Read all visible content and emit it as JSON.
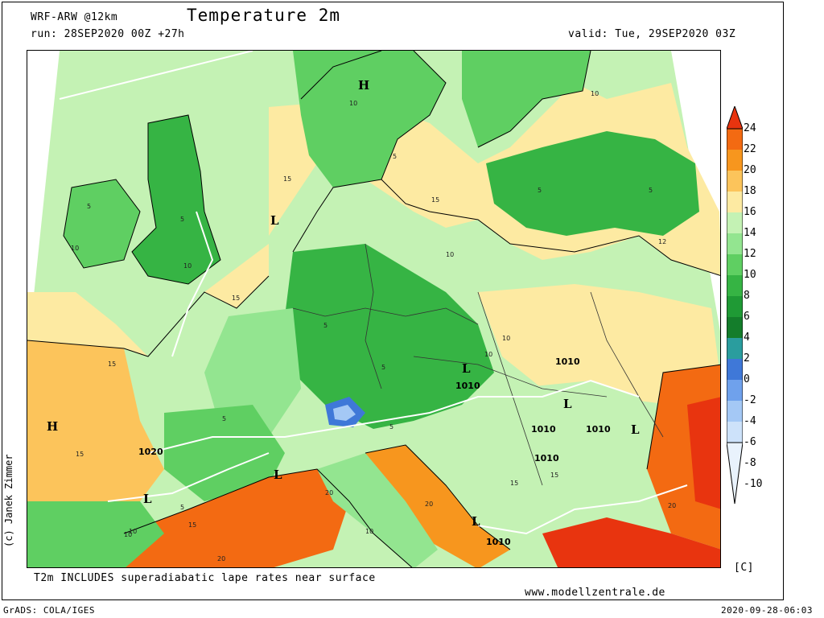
{
  "header": {
    "model": "WRF-ARW @12km",
    "title": "Temperature 2m",
    "run": "run: 28SEP2020 00Z +27h",
    "valid": "valid: Tue, 29SEP2020 03Z"
  },
  "footer": {
    "note": "T2m INCLUDES superadiabatic lape rates near surface",
    "website": "www.modellzentrale.de",
    "grads": "GrADS: COLA/IGES",
    "timestamp": "2020-09-28-06:03"
  },
  "credit": "(c) Janek Zimmer",
  "legend": {
    "unit": "[C]",
    "levels": [
      "24",
      "22",
      "20",
      "18",
      "16",
      "14",
      "12",
      "10",
      "8",
      "6",
      "4",
      "2",
      "0",
      "-2",
      "-4",
      "-6",
      "-8",
      "-10"
    ],
    "colors": [
      "#e8340f",
      "#f36a12",
      "#f7961e",
      "#fcc45b",
      "#fdeaa2",
      "#c4f2b4",
      "#93e590",
      "#5fcf62",
      "#36b444",
      "#1f9a35",
      "#147d2b",
      "#2a9d9e",
      "#3f78d8",
      "#6fa1ec",
      "#a4c8f5",
      "#cde2fa",
      "#e9f2fc"
    ]
  },
  "map": {
    "pressure_labels": [
      "H",
      "H",
      "L",
      "L",
      "L",
      "L",
      "L",
      "L",
      "L"
    ],
    "isobar_labels": [
      "1010",
      "1010",
      "1010",
      "1010",
      "1010",
      "1010",
      "1020"
    ],
    "isotherm_labels": [
      "10",
      "10",
      "10",
      "10",
      "10",
      "15",
      "15",
      "15",
      "15",
      "15",
      "5",
      "5",
      "5",
      "5",
      "5",
      "5",
      "5",
      "10",
      "10",
      "10",
      "15",
      "15",
      "20",
      "20",
      "20",
      "20",
      "10",
      "15",
      "12",
      "10",
      "5",
      "5",
      "5"
    ]
  }
}
